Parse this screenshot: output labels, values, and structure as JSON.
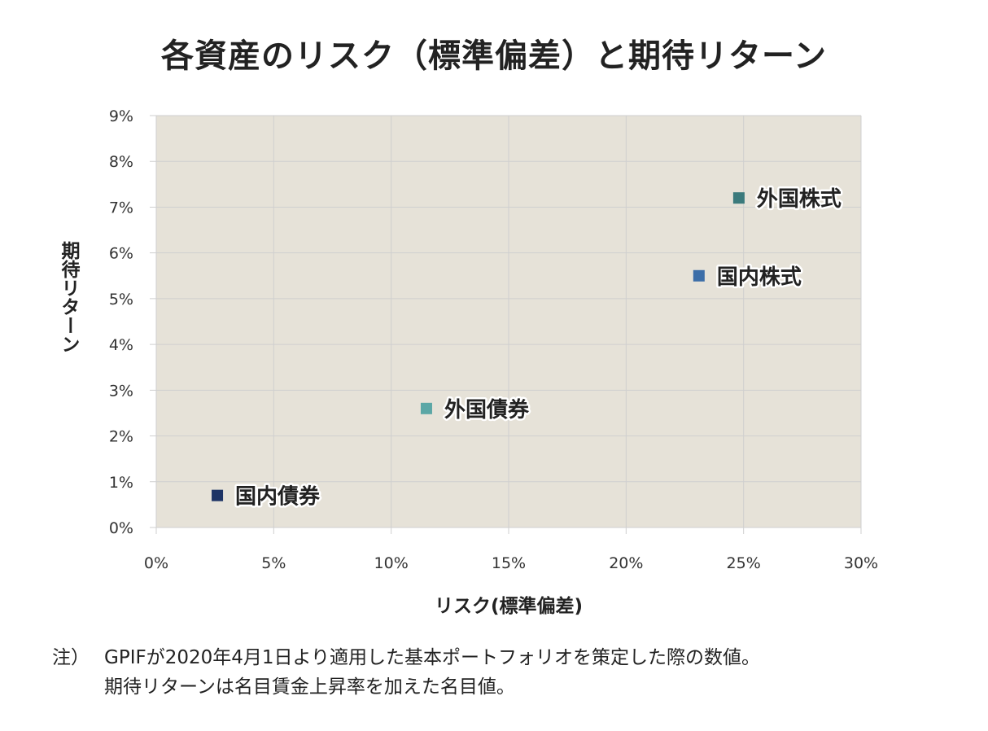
{
  "title": "各資産のリスク（標準偏差）と期待リターン",
  "chart_data": {
    "type": "scatter",
    "xlabel": "リスク(標準偏差)",
    "ylabel": "期待リターン",
    "xlim": [
      0,
      30
    ],
    "ylim": [
      0,
      9
    ],
    "x_ticks": [
      "0%",
      "5%",
      "10%",
      "15%",
      "20%",
      "25%",
      "30%"
    ],
    "y_ticks": [
      "0%",
      "1%",
      "2%",
      "3%",
      "4%",
      "5%",
      "6%",
      "7%",
      "8%",
      "9%"
    ],
    "grid": true,
    "plot_background": "#e6e2d8",
    "points": [
      {
        "label": "国内債券",
        "x": 2.6,
        "y": 0.7,
        "color": "#1e3466"
      },
      {
        "label": "外国債券",
        "x": 11.5,
        "y": 2.6,
        "color": "#5ba7a6"
      },
      {
        "label": "国内株式",
        "x": 23.1,
        "y": 5.5,
        "color": "#3c6ea8"
      },
      {
        "label": "外国株式",
        "x": 24.8,
        "y": 7.2,
        "color": "#3b7a7c"
      }
    ]
  },
  "note": {
    "prefix": "注）",
    "line1": "GPIFが2020年4月1日より適用した基本ポートフォリオを策定した際の数値。",
    "line2": "期待リターンは名目賃金上昇率を加えた名目値。"
  }
}
